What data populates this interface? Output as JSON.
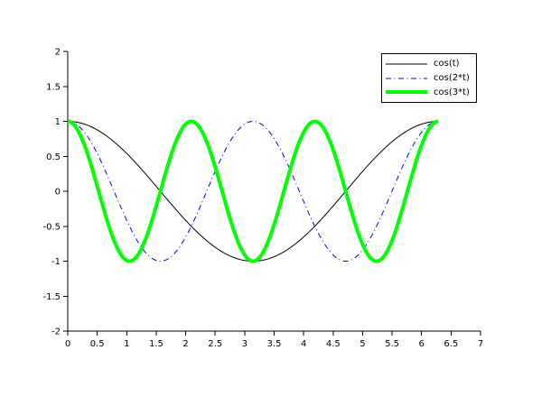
{
  "figure": {
    "background_color": "#ffffff",
    "axis_color": "#000000"
  },
  "chart_data": {
    "type": "line",
    "title": "",
    "xlabel": "",
    "ylabel": "",
    "xlim": [
      0,
      7
    ],
    "ylim": [
      -2,
      2
    ],
    "grid": false,
    "x_tick_values": [
      0,
      0.5,
      1,
      1.5,
      2,
      2.5,
      3,
      3.5,
      4,
      4.5,
      5,
      5.5,
      6,
      6.5,
      7
    ],
    "x_tick_labels": [
      "0",
      "0.5",
      "1",
      "1.5",
      "2",
      "2.5",
      "3",
      "3.5",
      "4",
      "4.5",
      "5",
      "5.5",
      "6",
      "6.5",
      "7"
    ],
    "y_tick_values": [
      2,
      1.5,
      1,
      0.5,
      0,
      -0.5,
      -1,
      -1.5,
      -2
    ],
    "y_tick_labels": [
      "2",
      "1.5",
      "1",
      "0.5",
      "0",
      "-0.5",
      "-1",
      "-1.5",
      "-2"
    ],
    "x_domain": [
      0,
      6.2832
    ],
    "sample_step": 0.02,
    "legend": {
      "position": "top-right",
      "border_color": "#000000",
      "background_color": "#ffffff"
    },
    "series": [
      {
        "name": "cos(t)",
        "expression": "cos(t)",
        "frequency": 1,
        "amplitude": 1,
        "color": "#000000",
        "style": "solid",
        "line_width": 1
      },
      {
        "name": "cos(2*t)",
        "expression": "cos(2*t)",
        "frequency": 2,
        "amplitude": 1,
        "color": "#0000ff",
        "style": "dash-dot",
        "line_width": 1
      },
      {
        "name": "cos(3*t)",
        "expression": "cos(3*t)",
        "frequency": 3,
        "amplitude": 1,
        "color": "#00ff00",
        "style": "solid",
        "line_width": 4
      }
    ]
  }
}
